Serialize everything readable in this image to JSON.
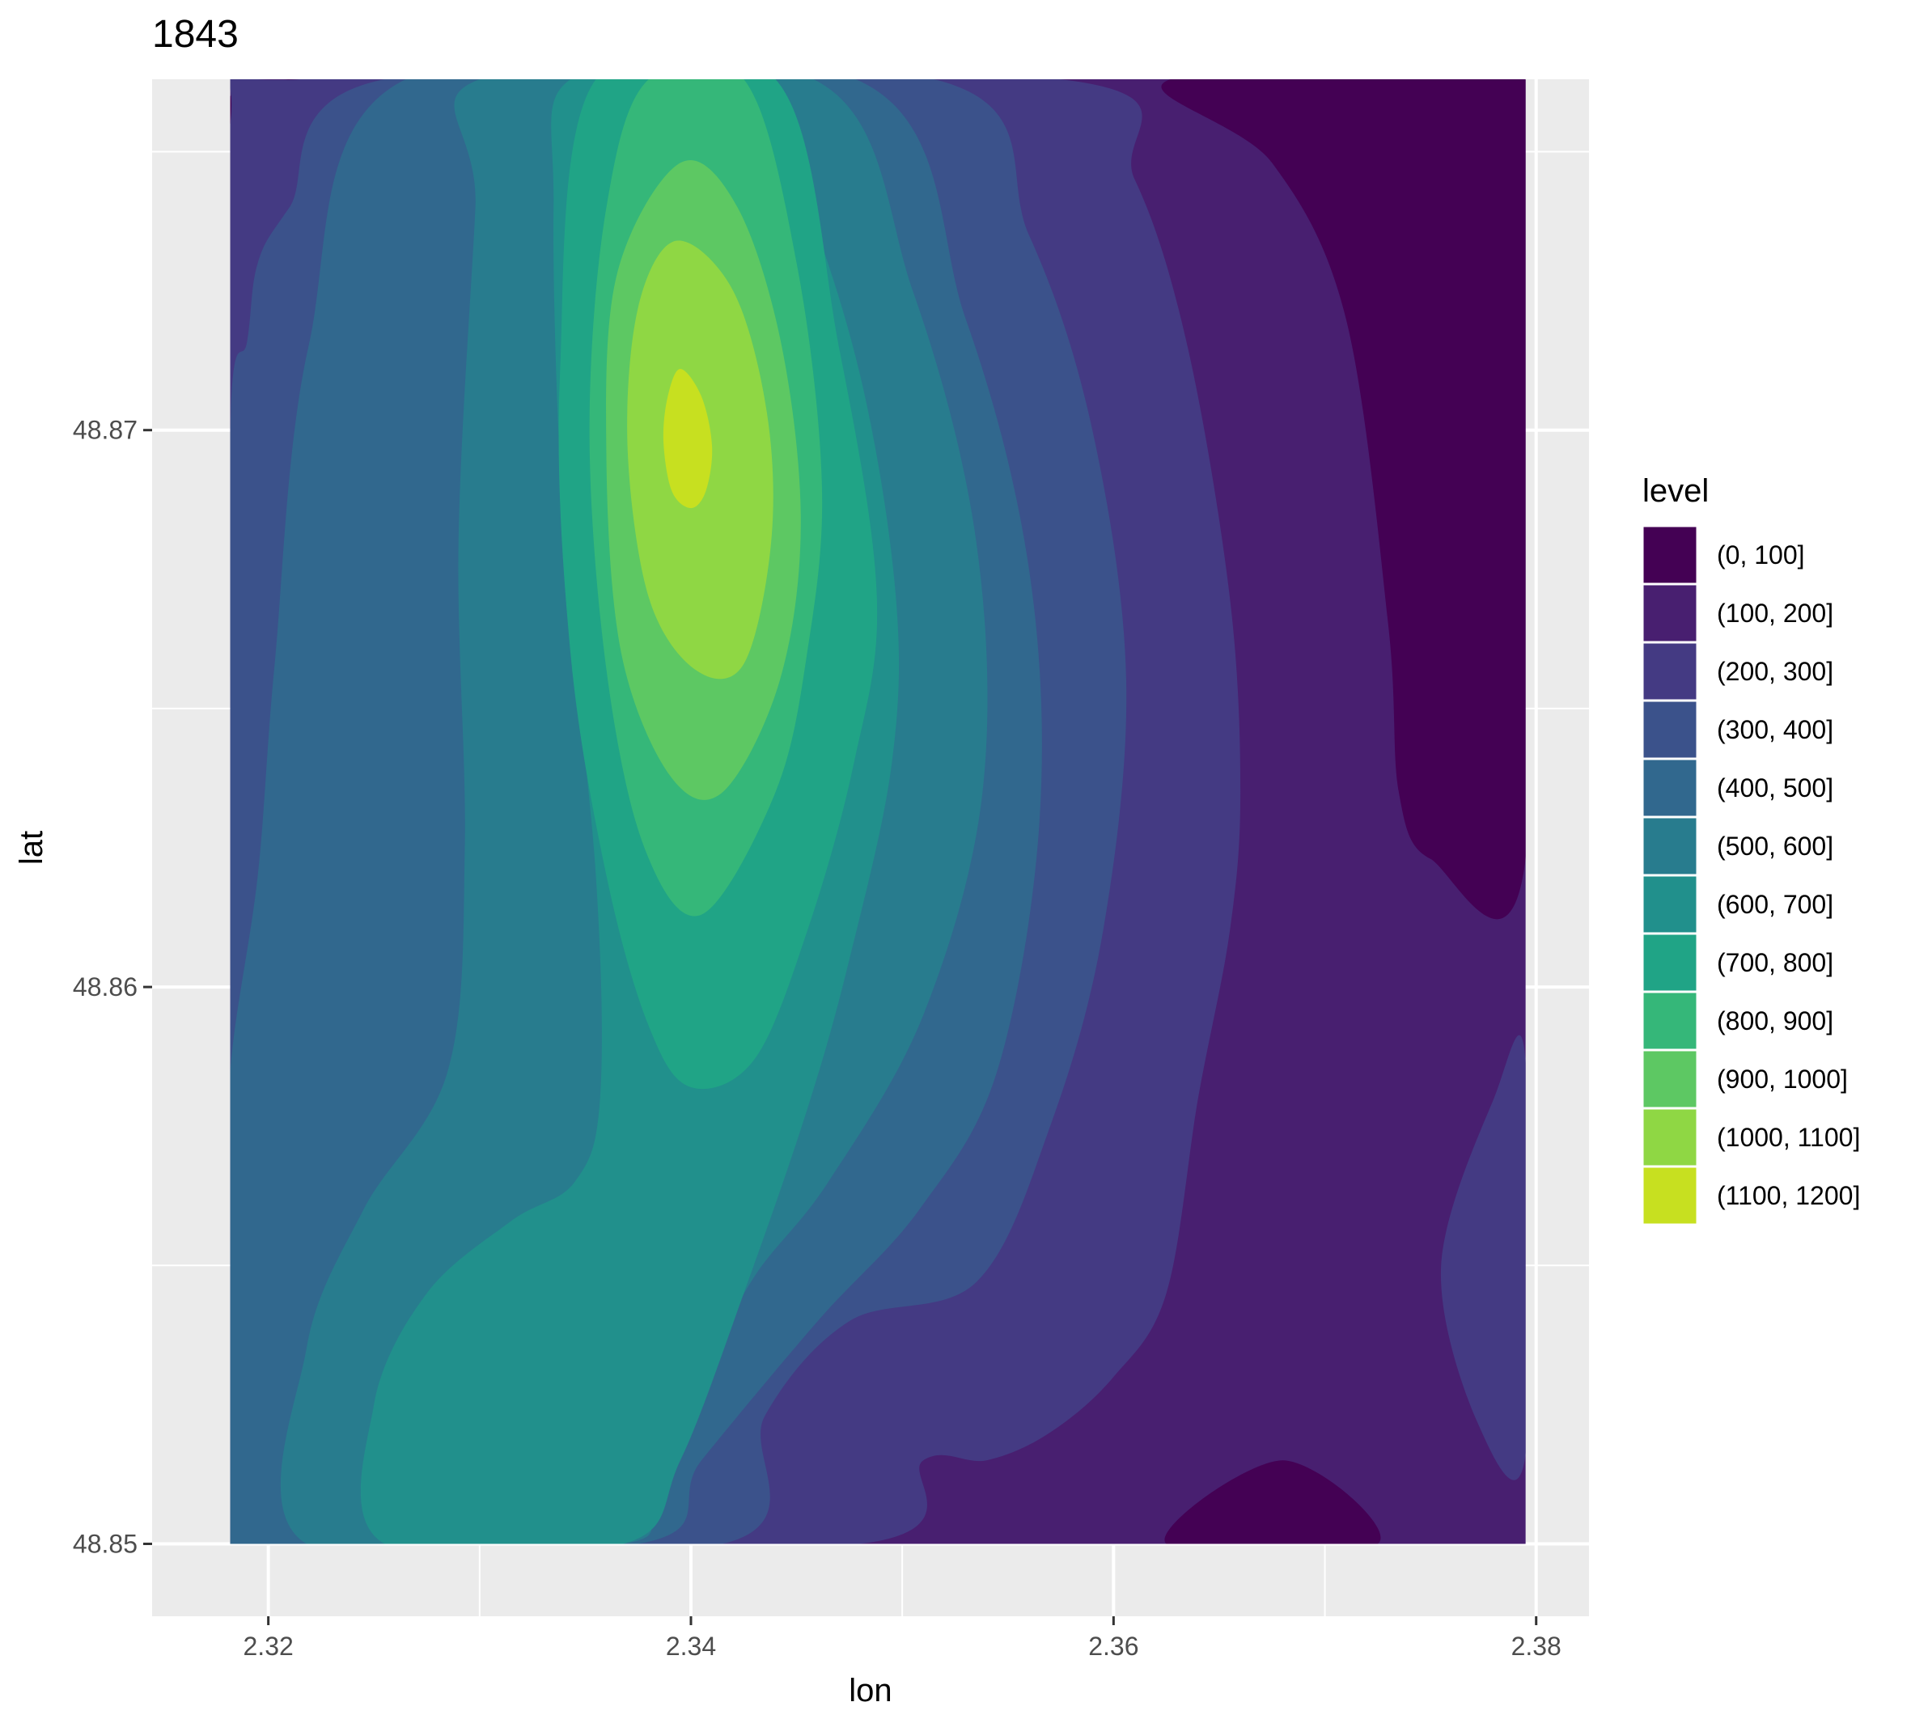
{
  "chart_data": {
    "type": "contour",
    "title": "1843",
    "xlabel": "lon",
    "ylabel": "lat",
    "xlim": [
      2.3145,
      2.3825
    ],
    "ylim": [
      48.8487,
      48.8763
    ],
    "data_extent": {
      "lon": [
        2.3182,
        2.3795
      ],
      "lat": [
        48.85,
        48.8763
      ]
    },
    "x_ticks": [
      {
        "value": 2.32,
        "label": "2.32"
      },
      {
        "value": 2.34,
        "label": "2.34"
      },
      {
        "value": 2.36,
        "label": "2.36"
      },
      {
        "value": 2.38,
        "label": "2.38"
      }
    ],
    "y_ticks": [
      {
        "value": 48.85,
        "label": "48.85"
      },
      {
        "value": 48.86,
        "label": "48.86"
      },
      {
        "value": 48.87,
        "label": "48.87"
      }
    ],
    "grid": true,
    "legend": {
      "title": "level",
      "position": "right",
      "levels": [
        {
          "label": "(0, 100]",
          "color": "#440154"
        },
        {
          "label": "(100, 200]",
          "color": "#481F70"
        },
        {
          "label": "(200, 300]",
          "color": "#443A83"
        },
        {
          "label": "(300, 400]",
          "color": "#3B528B"
        },
        {
          "label": "(400, 500]",
          "color": "#31688E"
        },
        {
          "label": "(500, 600]",
          "color": "#287C8E"
        },
        {
          "label": "(600, 700]",
          "color": "#21908C"
        },
        {
          "label": "(700, 800]",
          "color": "#20A486"
        },
        {
          "label": "(800, 900]",
          "color": "#35B779"
        },
        {
          "label": "(900, 1000]",
          "color": "#5DC863"
        },
        {
          "label": "(1000, 1100]",
          "color": "#8FD744"
        },
        {
          "label": "(1100, 1200]",
          "color": "#C7E020"
        }
      ]
    },
    "contour_regions": [
      {
        "level": "(100, 200]",
        "points": [
          [
            2.3182,
            48.85
          ],
          [
            2.3795,
            48.85
          ],
          [
            2.3795,
            48.8763
          ],
          [
            2.3182,
            48.8763
          ]
        ]
      },
      {
        "level": "(0, 100]",
        "points": [
          [
            2.3627,
            48.8763
          ],
          [
            2.3795,
            48.8763
          ],
          [
            2.3795,
            48.8623
          ],
          [
            2.375,
            48.8623
          ],
          [
            2.3735,
            48.8635
          ],
          [
            2.373,
            48.8665
          ],
          [
            2.371,
            48.872
          ],
          [
            2.3675,
            48.8748
          ]
        ]
      },
      {
        "level": "(0, 100]",
        "points": [
          [
            2.3182,
            48.876
          ],
          [
            2.3182,
            48.8755
          ],
          [
            2.3215,
            48.8763
          ]
        ]
      },
      {
        "level": "(0, 100]",
        "points": [
          [
            2.3625,
            48.85
          ],
          [
            2.368,
            48.8515
          ],
          [
            2.3725,
            48.85
          ]
        ]
      },
      {
        "level": "(200, 300]",
        "points": [
          [
            2.3795,
            48.8587
          ],
          [
            2.378,
            48.858
          ],
          [
            2.3755,
            48.855
          ],
          [
            2.3772,
            48.8522
          ],
          [
            2.3795,
            48.8516
          ]
        ]
      },
      {
        "level": "(200, 300]",
        "points": [
          [
            2.3182,
            48.8755
          ],
          [
            2.3215,
            48.8763
          ],
          [
            2.3575,
            48.8763
          ],
          [
            2.361,
            48.8745
          ],
          [
            2.3635,
            48.8715
          ],
          [
            2.3655,
            48.867
          ],
          [
            2.366,
            48.8635
          ],
          [
            2.3655,
            48.861
          ],
          [
            2.364,
            48.858
          ],
          [
            2.3625,
            48.8545
          ],
          [
            2.36,
            48.853
          ],
          [
            2.357,
            48.852
          ],
          [
            2.354,
            48.8515
          ],
          [
            2.351,
            48.8515
          ],
          [
            2.348,
            48.85
          ],
          [
            2.3182,
            48.85
          ],
          [
            2.3182,
            48.8585
          ],
          [
            2.319,
            48.861
          ],
          [
            2.3195,
            48.863
          ],
          [
            2.3182,
            48.8656
          ]
        ]
      },
      {
        "level": "(300, 400]",
        "points": [
          [
            2.3182,
            48.8595
          ],
          [
            2.3182,
            48.87
          ],
          [
            2.319,
            48.8716
          ],
          [
            2.3195,
            48.873
          ],
          [
            2.321,
            48.874
          ],
          [
            2.3255,
            48.8763
          ],
          [
            2.3515,
            48.8763
          ],
          [
            2.356,
            48.8735
          ],
          [
            2.359,
            48.87
          ],
          [
            2.3606,
            48.8655
          ],
          [
            2.3595,
            48.861
          ],
          [
            2.357,
            48.8575
          ],
          [
            2.3535,
            48.8547
          ],
          [
            2.3475,
            48.854
          ],
          [
            2.3435,
            48.8523
          ],
          [
            2.3415,
            48.85
          ],
          [
            2.3182,
            48.85
          ]
        ]
      },
      {
        "level": "(400, 500]",
        "points": [
          [
            2.3182,
            48.8555
          ],
          [
            2.3182,
            48.8585
          ],
          [
            2.3195,
            48.862
          ],
          [
            2.3203,
            48.8658
          ],
          [
            2.3219,
            48.8715
          ],
          [
            2.3265,
            48.8763
          ],
          [
            2.3478,
            48.8763
          ],
          [
            2.353,
            48.872
          ],
          [
            2.356,
            48.8675
          ],
          [
            2.3565,
            48.863
          ],
          [
            2.3545,
            48.8585
          ],
          [
            2.3508,
            48.856
          ],
          [
            2.346,
            48.854
          ],
          [
            2.3405,
            48.8515
          ],
          [
            2.3375,
            48.85
          ],
          [
            2.3182,
            48.85
          ]
        ]
      },
      {
        "level": "(500, 600]",
        "points": [
          [
            2.3218,
            48.85
          ],
          [
            2.3218,
            48.8535
          ],
          [
            2.3245,
            48.856
          ],
          [
            2.3285,
            48.8585
          ],
          [
            2.3293,
            48.8625
          ],
          [
            2.329,
            48.868
          ],
          [
            2.3298,
            48.874
          ],
          [
            2.33,
            48.8763
          ],
          [
            2.3458,
            48.8763
          ],
          [
            2.3505,
            48.8725
          ],
          [
            2.3535,
            48.868
          ],
          [
            2.3538,
            48.8635
          ],
          [
            2.351,
            48.8595
          ],
          [
            2.3465,
            48.8565
          ],
          [
            2.343,
            48.8548
          ],
          [
            2.3405,
            48.853
          ],
          [
            2.3378,
            48.851
          ],
          [
            2.3368,
            48.85
          ]
        ]
      },
      {
        "level": "(600, 700]",
        "points": [
          [
            2.3255,
            48.85
          ],
          [
            2.325,
            48.8525
          ],
          [
            2.3275,
            48.8545
          ],
          [
            2.3315,
            48.8558
          ],
          [
            2.3345,
            48.8565
          ],
          [
            2.3357,
            48.858
          ],
          [
            2.3355,
            48.862
          ],
          [
            2.334,
            48.868
          ],
          [
            2.3335,
            48.874
          ],
          [
            2.3343,
            48.8763
          ],
          [
            2.342,
            48.8763
          ],
          [
            2.345,
            48.8745
          ],
          [
            2.348,
            48.871
          ],
          [
            2.3497,
            48.867
          ],
          [
            2.3495,
            48.864
          ],
          [
            2.3475,
            48.8605
          ],
          [
            2.3455,
            48.8578
          ],
          [
            2.3425,
            48.8545
          ],
          [
            2.3395,
            48.8515
          ],
          [
            2.3368,
            48.85
          ]
        ]
      },
      {
        "level": "(700, 800]",
        "points": [
          [
            2.3355,
            48.8763
          ],
          [
            2.344,
            48.8763
          ],
          [
            2.347,
            48.8715
          ],
          [
            2.3488,
            48.867
          ],
          [
            2.3477,
            48.864
          ],
          [
            2.3455,
            48.861
          ],
          [
            2.343,
            48.8587
          ],
          [
            2.34,
            48.8582
          ],
          [
            2.338,
            48.8593
          ],
          [
            2.336,
            48.862
          ],
          [
            2.3343,
            48.866
          ],
          [
            2.3338,
            48.871
          ]
        ]
      },
      {
        "level": "(800, 900]",
        "points": [
          [
            2.338,
            48.8763
          ],
          [
            2.3425,
            48.8763
          ],
          [
            2.345,
            48.873
          ],
          [
            2.3462,
            48.869
          ],
          [
            2.3455,
            48.866
          ],
          [
            2.344,
            48.8635
          ],
          [
            2.3405,
            48.8613
          ],
          [
            2.3378,
            48.8625
          ],
          [
            2.336,
            48.8657
          ],
          [
            2.3352,
            48.87
          ],
          [
            2.336,
            48.874
          ]
        ]
      },
      {
        "level": "(900, 1000]",
        "points": [
          [
            2.3395,
            48.8748
          ],
          [
            2.3422,
            48.874
          ],
          [
            2.3443,
            48.8715
          ],
          [
            2.3452,
            48.8683
          ],
          [
            2.3442,
            48.8655
          ],
          [
            2.3415,
            48.8635
          ],
          [
            2.339,
            48.8638
          ],
          [
            2.3367,
            48.866
          ],
          [
            2.336,
            48.8695
          ],
          [
            2.3365,
            48.8728
          ]
        ]
      },
      {
        "level": "(1000, 1100]",
        "points": [
          [
            2.3393,
            48.8734
          ],
          [
            2.342,
            48.8725
          ],
          [
            2.3436,
            48.8703
          ],
          [
            2.3438,
            48.868
          ],
          [
            2.3425,
            48.8658
          ],
          [
            2.3402,
            48.8657
          ],
          [
            2.338,
            48.867
          ],
          [
            2.337,
            48.8697
          ],
          [
            2.3375,
            48.8722
          ]
        ]
      },
      {
        "level": "(1100, 1200]",
        "points": [
          [
            2.3395,
            48.8711
          ],
          [
            2.3405,
            48.8706
          ],
          [
            2.341,
            48.8697
          ],
          [
            2.3407,
            48.8689
          ],
          [
            2.34,
            48.8686
          ],
          [
            2.3391,
            48.8689
          ],
          [
            2.3387,
            48.8698
          ],
          [
            2.3389,
            48.8706
          ]
        ]
      }
    ]
  }
}
